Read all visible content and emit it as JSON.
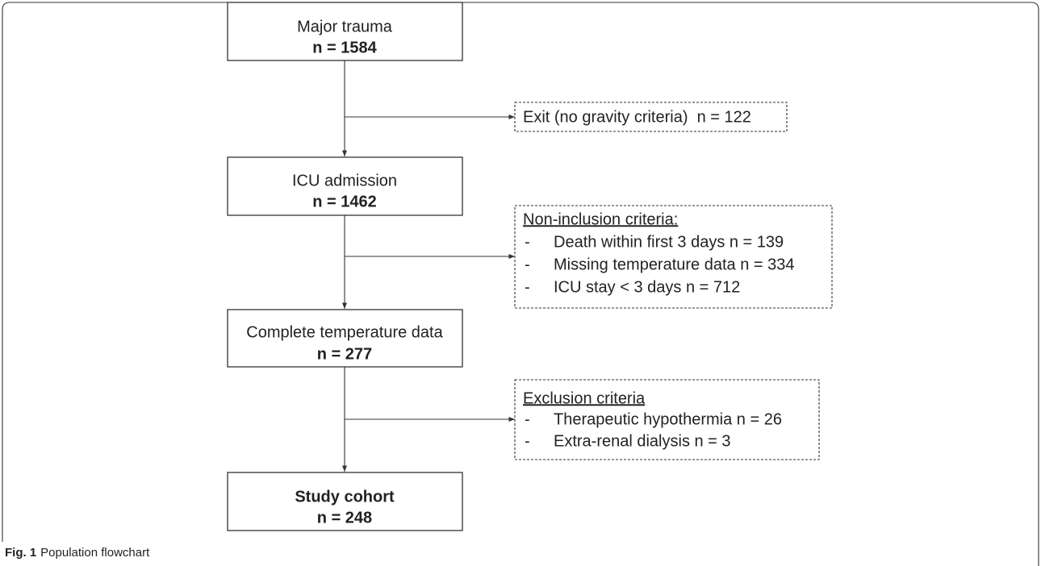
{
  "nodes": [
    {
      "label": "Major trauma",
      "count": "n = 1584"
    },
    {
      "label": "ICU admission",
      "count": "n = 1462"
    },
    {
      "label": "Complete temperature data",
      "count": "n = 277"
    },
    {
      "label": "Study cohort",
      "count": "n = 248"
    }
  ],
  "exits": [
    {
      "label": "Exit (no gravity criteria)  n = 122"
    },
    {
      "title": "Non-inclusion criteria:",
      "items": [
        {
          "marker": "-",
          "text": "Death within first 3 days n = 139"
        },
        {
          "marker": "-",
          "text": "Missing temperature data n = 334"
        },
        {
          "marker": "-",
          "text": "ICU stay < 3 days n = 712"
        }
      ]
    },
    {
      "title": "Exclusion criteria",
      "items": [
        {
          "marker": "-",
          "text": "Therapeutic hypothermia n = 26"
        },
        {
          "marker": "-",
          "text": "Extra-renal dialysis n = 3"
        }
      ]
    }
  ],
  "caption": {
    "label": "Fig. 1",
    "text": "Population flowchart"
  }
}
